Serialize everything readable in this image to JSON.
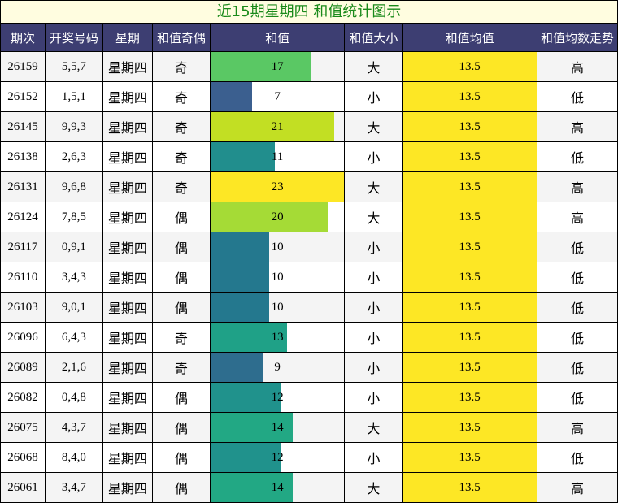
{
  "title": "近15期星期四 和值统计图示",
  "headers": [
    "期次",
    "开奖号码",
    "星期",
    "和值奇偶",
    "和值",
    "和值大小",
    "和值均值",
    "和值均数走势"
  ],
  "chart_data": {
    "type": "table",
    "xlim": [
      0,
      23
    ],
    "rows": [
      {
        "issue": "26159",
        "numbers": "5,5,7",
        "weekday": "星期四",
        "parity": "奇",
        "sum": 17,
        "size": "大",
        "avg": "13.5",
        "trend": "高",
        "color": "#5ac864"
      },
      {
        "issue": "26152",
        "numbers": "1,5,1",
        "weekday": "星期四",
        "parity": "奇",
        "sum": 7,
        "size": "小",
        "avg": "13.5",
        "trend": "低",
        "color": "#3b5f8f"
      },
      {
        "issue": "26145",
        "numbers": "9,9,3",
        "weekday": "星期四",
        "parity": "奇",
        "sum": 21,
        "size": "大",
        "avg": "13.5",
        "trend": "高",
        "color": "#c2df23"
      },
      {
        "issue": "26138",
        "numbers": "2,6,3",
        "weekday": "星期四",
        "parity": "奇",
        "sum": 11,
        "size": "小",
        "avg": "13.5",
        "trend": "低",
        "color": "#218e8d"
      },
      {
        "issue": "26131",
        "numbers": "9,6,8",
        "weekday": "星期四",
        "parity": "奇",
        "sum": 23,
        "size": "大",
        "avg": "13.5",
        "trend": "高",
        "color": "#fde725"
      },
      {
        "issue": "26124",
        "numbers": "7,8,5",
        "weekday": "星期四",
        "parity": "偶",
        "sum": 20,
        "size": "大",
        "avg": "13.5",
        "trend": "高",
        "color": "#a5db36"
      },
      {
        "issue": "26117",
        "numbers": "0,9,1",
        "weekday": "星期四",
        "parity": "偶",
        "sum": 10,
        "size": "小",
        "avg": "13.5",
        "trend": "低",
        "color": "#24788e"
      },
      {
        "issue": "26110",
        "numbers": "3,4,3",
        "weekday": "星期四",
        "parity": "偶",
        "sum": 10,
        "size": "小",
        "avg": "13.5",
        "trend": "低",
        "color": "#24788e"
      },
      {
        "issue": "26103",
        "numbers": "9,0,1",
        "weekday": "星期四",
        "parity": "偶",
        "sum": 10,
        "size": "小",
        "avg": "13.5",
        "trend": "低",
        "color": "#24788e"
      },
      {
        "issue": "26096",
        "numbers": "6,4,3",
        "weekday": "星期四",
        "parity": "奇",
        "sum": 13,
        "size": "小",
        "avg": "13.5",
        "trend": "低",
        "color": "#1fa187"
      },
      {
        "issue": "26089",
        "numbers": "2,1,6",
        "weekday": "星期四",
        "parity": "奇",
        "sum": 9,
        "size": "小",
        "avg": "13.5",
        "trend": "低",
        "color": "#2e6d8e"
      },
      {
        "issue": "26082",
        "numbers": "0,4,8",
        "weekday": "星期四",
        "parity": "偶",
        "sum": 12,
        "size": "小",
        "avg": "13.5",
        "trend": "低",
        "color": "#20928c"
      },
      {
        "issue": "26075",
        "numbers": "4,3,7",
        "weekday": "星期四",
        "parity": "偶",
        "sum": 14,
        "size": "大",
        "avg": "13.5",
        "trend": "高",
        "color": "#22a884"
      },
      {
        "issue": "26068",
        "numbers": "8,4,0",
        "weekday": "星期四",
        "parity": "偶",
        "sum": 12,
        "size": "小",
        "avg": "13.5",
        "trend": "低",
        "color": "#20928c"
      },
      {
        "issue": "26061",
        "numbers": "3,4,7",
        "weekday": "星期四",
        "parity": "偶",
        "sum": 14,
        "size": "大",
        "avg": "13.5",
        "trend": "高",
        "color": "#22a884"
      }
    ]
  }
}
